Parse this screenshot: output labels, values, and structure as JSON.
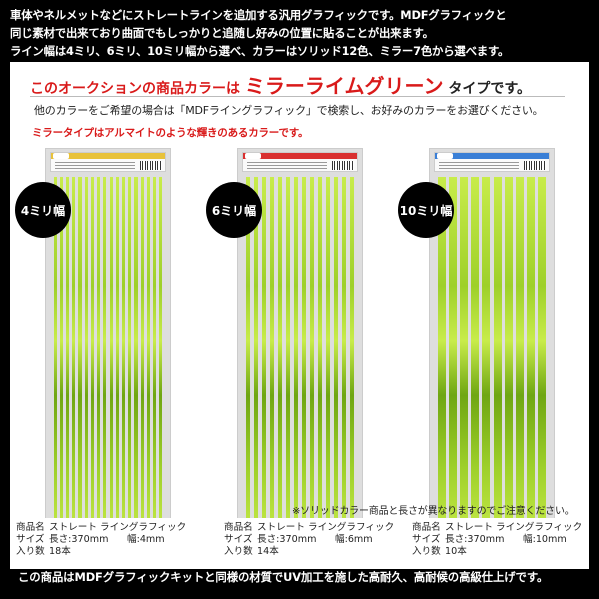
{
  "intro": {
    "line1": "車体やネルメットなどにストレートラインを追加する汎用グラフィックです。MDFグラフィックと",
    "line2": "同じ素材で出来ており曲面でもしっかりと追随し好みの位置に貼ることが出来ます。",
    "line3": "ライン幅は4ミリ、6ミリ、10ミリ幅から選べ、カラーはソリッド12色、ミラー7色から選べます。"
  },
  "headline": {
    "prefix": "このオークションの商品カラーは",
    "color_name": "ミラーライムグリーン",
    "suffix": "タイプです。"
  },
  "subtext": {
    "other_colors": "他のカラーをご希望の場合は「MDFライングラフィック」で検索し、お好みのカラーをお選びください。",
    "mirror_note": "ミラータイプはアルマイトのような輝きのあるカラーです。"
  },
  "products": [
    {
      "badge": "4ミリ幅",
      "stripes": 18,
      "stripe_width_mm": 4,
      "header_color": "#e8c23a",
      "spec": {
        "name_label": "商品名",
        "name_value": "ストレート ライングラフィック",
        "size_label": "サイズ",
        "length": "長さ:370mm",
        "width": "幅:4mm",
        "count_label": "入り数",
        "count": "18本"
      }
    },
    {
      "badge": "6ミリ幅",
      "stripes": 14,
      "stripe_width_mm": 6,
      "header_color": "#d93030",
      "spec": {
        "name_label": "商品名",
        "name_value": "ストレート ライングラフィック",
        "size_label": "サイズ",
        "length": "長さ:370mm",
        "width": "幅:6mm",
        "count_label": "入り数",
        "count": "14本"
      }
    },
    {
      "badge": "10ミリ幅",
      "stripes": 10,
      "stripe_width_mm": 10,
      "header_color": "#3a7fd6",
      "spec": {
        "name_label": "商品名",
        "name_value": "ストレート ライングラフィック",
        "size_label": "サイズ",
        "length": "長さ:370mm",
        "width": "幅:10mm",
        "count_label": "入り数",
        "count": "10本"
      }
    }
  ],
  "disclaimer": "※ソリッドカラー商品と長さが異なりますのでご注意ください。",
  "footer": "この商品はMDFグラフィックキットと同様の材質でUV加工を施した高耐久、高耐候の高級仕上げです。",
  "colors": {
    "lime_light": "#c8ec4a",
    "lime_mid": "#9ed02a",
    "lime_dark": "#6fa612",
    "accent_red": "#d91a1a"
  }
}
